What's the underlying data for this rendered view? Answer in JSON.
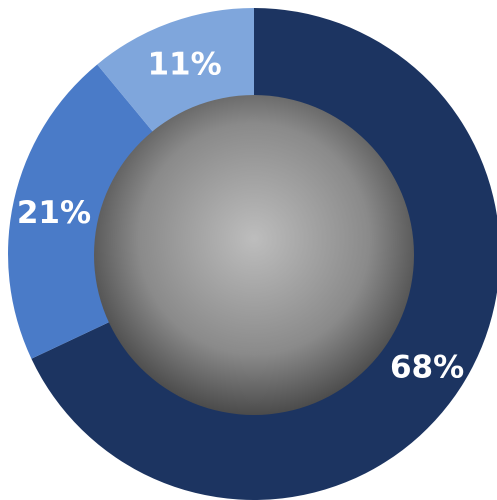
{
  "chart_data": {
    "type": "donut",
    "categories": [
      null,
      null,
      null
    ],
    "values": [
      68,
      21,
      11
    ],
    "value_labels": [
      "68%",
      "21%",
      "11%"
    ],
    "colors": [
      "#1c3461",
      "#4a7bc8",
      "#7fa6dc"
    ]
  }
}
